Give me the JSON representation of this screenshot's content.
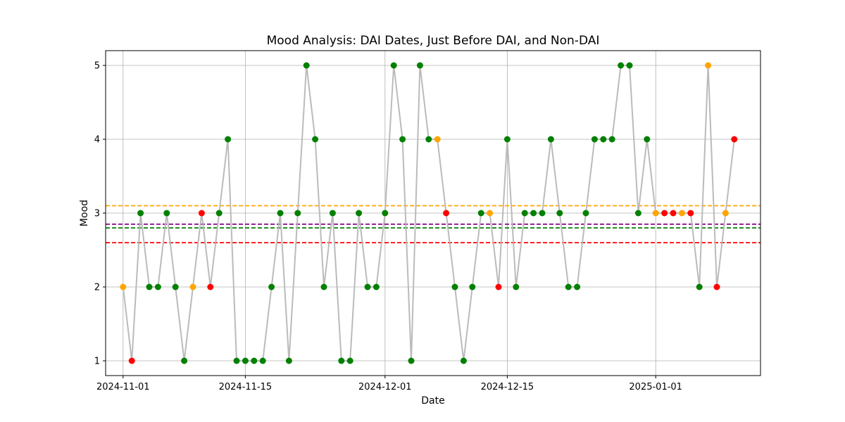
{
  "chart_data": {
    "type": "line",
    "title": "Mood Analysis: DAI Dates, Just Before DAI, and Non-DAI",
    "xlabel": "Date",
    "ylabel": "Mood",
    "x_tick_labels": [
      "2024-11-01",
      "2024-11-15",
      "2024-12-01",
      "2024-12-15",
      "2025-01-01"
    ],
    "y_tick_labels": [
      "1",
      "2",
      "3",
      "4",
      "5"
    ],
    "xlim": [
      "2024-10-30",
      "2025-01-13"
    ],
    "ylim": [
      0.8,
      5.2
    ],
    "grid": true,
    "line_color": "#bbbbbb",
    "category_colors": {
      "dai": "#ff0000",
      "just_before_dai": "#ffa500",
      "non_dai": "#008000"
    },
    "reference_lines": [
      {
        "color": "#ffa500",
        "y": 3.1
      },
      {
        "color": "#800080",
        "y": 2.85
      },
      {
        "color": "#008000",
        "y": 2.8
      },
      {
        "color": "#ff0000",
        "y": 2.6
      }
    ],
    "series": [
      {
        "points": [
          {
            "x": "2024-11-01",
            "y": 2,
            "cat": "just_before_dai"
          },
          {
            "x": "2024-11-02",
            "y": 1,
            "cat": "dai"
          },
          {
            "x": "2024-11-03",
            "y": 3,
            "cat": "non_dai"
          },
          {
            "x": "2024-11-04",
            "y": 2,
            "cat": "non_dai"
          },
          {
            "x": "2024-11-05",
            "y": 2,
            "cat": "non_dai"
          },
          {
            "x": "2024-11-06",
            "y": 3,
            "cat": "non_dai"
          },
          {
            "x": "2024-11-07",
            "y": 2,
            "cat": "non_dai"
          },
          {
            "x": "2024-11-08",
            "y": 1,
            "cat": "non_dai"
          },
          {
            "x": "2024-11-09",
            "y": 2,
            "cat": "just_before_dai"
          },
          {
            "x": "2024-11-10",
            "y": 3,
            "cat": "dai"
          },
          {
            "x": "2024-11-11",
            "y": 2,
            "cat": "dai"
          },
          {
            "x": "2024-11-12",
            "y": 3,
            "cat": "non_dai"
          },
          {
            "x": "2024-11-13",
            "y": 4,
            "cat": "non_dai"
          },
          {
            "x": "2024-11-14",
            "y": 1,
            "cat": "non_dai"
          },
          {
            "x": "2024-11-15",
            "y": 1,
            "cat": "non_dai"
          },
          {
            "x": "2024-11-16",
            "y": 1,
            "cat": "non_dai"
          },
          {
            "x": "2024-11-17",
            "y": 1,
            "cat": "non_dai"
          },
          {
            "x": "2024-11-18",
            "y": 2,
            "cat": "non_dai"
          },
          {
            "x": "2024-11-19",
            "y": 3,
            "cat": "non_dai"
          },
          {
            "x": "2024-11-20",
            "y": 1,
            "cat": "non_dai"
          },
          {
            "x": "2024-11-21",
            "y": 3,
            "cat": "non_dai"
          },
          {
            "x": "2024-11-22",
            "y": 5,
            "cat": "non_dai"
          },
          {
            "x": "2024-11-23",
            "y": 4,
            "cat": "non_dai"
          },
          {
            "x": "2024-11-24",
            "y": 2,
            "cat": "non_dai"
          },
          {
            "x": "2024-11-25",
            "y": 3,
            "cat": "non_dai"
          },
          {
            "x": "2024-11-26",
            "y": 1,
            "cat": "non_dai"
          },
          {
            "x": "2024-11-27",
            "y": 1,
            "cat": "non_dai"
          },
          {
            "x": "2024-11-28",
            "y": 3,
            "cat": "non_dai"
          },
          {
            "x": "2024-11-29",
            "y": 2,
            "cat": "non_dai"
          },
          {
            "x": "2024-11-30",
            "y": 2,
            "cat": "non_dai"
          },
          {
            "x": "2024-12-01",
            "y": 3,
            "cat": "non_dai"
          },
          {
            "x": "2024-12-02",
            "y": 5,
            "cat": "non_dai"
          },
          {
            "x": "2024-12-03",
            "y": 4,
            "cat": "non_dai"
          },
          {
            "x": "2024-12-04",
            "y": 1,
            "cat": "non_dai"
          },
          {
            "x": "2024-12-05",
            "y": 5,
            "cat": "non_dai"
          },
          {
            "x": "2024-12-06",
            "y": 4,
            "cat": "non_dai"
          },
          {
            "x": "2024-12-07",
            "y": 4,
            "cat": "just_before_dai"
          },
          {
            "x": "2024-12-08",
            "y": 3,
            "cat": "dai"
          },
          {
            "x": "2024-12-09",
            "y": 2,
            "cat": "non_dai"
          },
          {
            "x": "2024-12-10",
            "y": 1,
            "cat": "non_dai"
          },
          {
            "x": "2024-12-11",
            "y": 2,
            "cat": "non_dai"
          },
          {
            "x": "2024-12-12",
            "y": 3,
            "cat": "non_dai"
          },
          {
            "x": "2024-12-13",
            "y": 3,
            "cat": "just_before_dai"
          },
          {
            "x": "2024-12-14",
            "y": 2,
            "cat": "dai"
          },
          {
            "x": "2024-12-15",
            "y": 4,
            "cat": "non_dai"
          },
          {
            "x": "2024-12-16",
            "y": 2,
            "cat": "non_dai"
          },
          {
            "x": "2024-12-17",
            "y": 3,
            "cat": "non_dai"
          },
          {
            "x": "2024-12-18",
            "y": 3,
            "cat": "non_dai"
          },
          {
            "x": "2024-12-19",
            "y": 3,
            "cat": "non_dai"
          },
          {
            "x": "2024-12-20",
            "y": 4,
            "cat": "non_dai"
          },
          {
            "x": "2024-12-21",
            "y": 3,
            "cat": "non_dai"
          },
          {
            "x": "2024-12-22",
            "y": 2,
            "cat": "non_dai"
          },
          {
            "x": "2024-12-23",
            "y": 2,
            "cat": "non_dai"
          },
          {
            "x": "2024-12-24",
            "y": 3,
            "cat": "non_dai"
          },
          {
            "x": "2024-12-25",
            "y": 4,
            "cat": "non_dai"
          },
          {
            "x": "2024-12-26",
            "y": 4,
            "cat": "non_dai"
          },
          {
            "x": "2024-12-27",
            "y": 4,
            "cat": "non_dai"
          },
          {
            "x": "2024-12-28",
            "y": 5,
            "cat": "non_dai"
          },
          {
            "x": "2024-12-29",
            "y": 5,
            "cat": "non_dai"
          },
          {
            "x": "2024-12-30",
            "y": 3,
            "cat": "non_dai"
          },
          {
            "x": "2024-12-31",
            "y": 4,
            "cat": "non_dai"
          },
          {
            "x": "2025-01-01",
            "y": 3,
            "cat": "just_before_dai"
          },
          {
            "x": "2025-01-02",
            "y": 3,
            "cat": "dai"
          },
          {
            "x": "2025-01-03",
            "y": 3,
            "cat": "dai"
          },
          {
            "x": "2025-01-04",
            "y": 3,
            "cat": "just_before_dai"
          },
          {
            "x": "2025-01-05",
            "y": 3,
            "cat": "dai"
          },
          {
            "x": "2025-01-06",
            "y": 2,
            "cat": "non_dai"
          },
          {
            "x": "2025-01-07",
            "y": 5,
            "cat": "just_before_dai"
          },
          {
            "x": "2025-01-08",
            "y": 2,
            "cat": "dai"
          },
          {
            "x": "2025-01-09",
            "y": 3,
            "cat": "just_before_dai"
          },
          {
            "x": "2025-01-10",
            "y": 4,
            "cat": "dai"
          }
        ]
      }
    ]
  }
}
